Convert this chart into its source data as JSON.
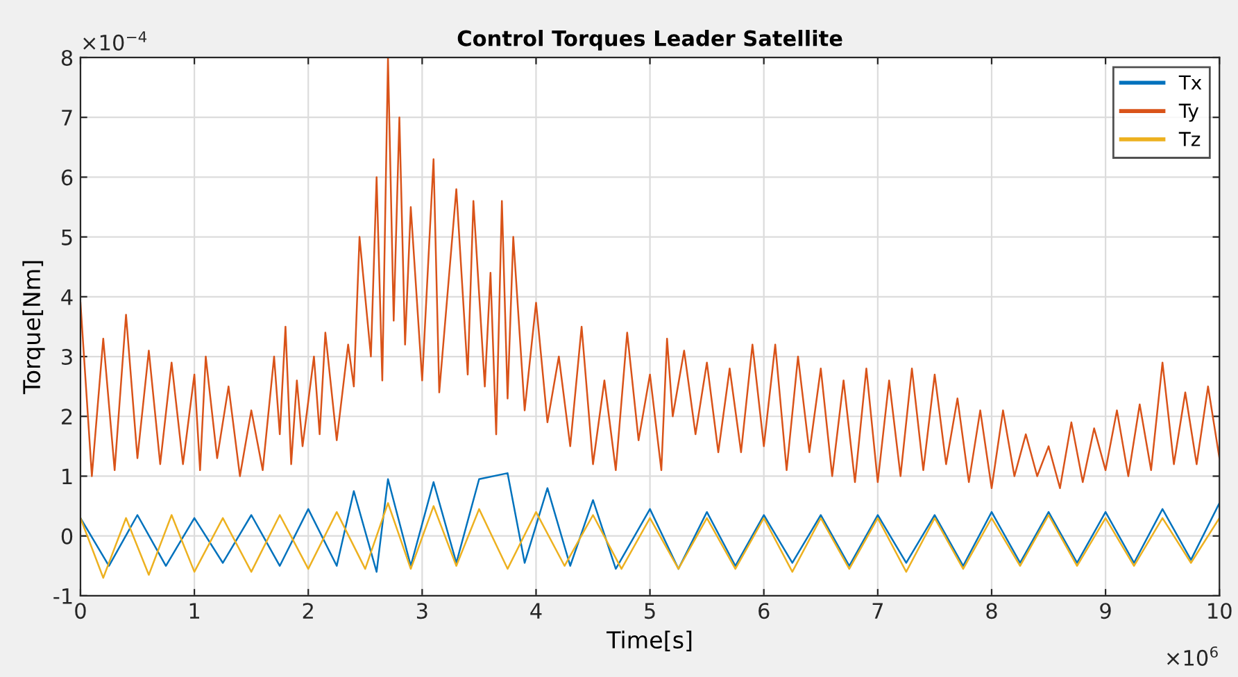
{
  "chart_data": {
    "type": "line",
    "title": "Control Torques Leader Satellite",
    "xlabel": "Time[s]",
    "ylabel": "Torque[Nm]",
    "annotations": [
      "×10$^{−4}$",
      "×10$^{6}$"
    ],
    "xlim": [
      0,
      10
    ],
    "ylim": [
      -1,
      8
    ],
    "xticks": [
      0,
      1,
      2,
      3,
      4,
      5,
      6,
      7,
      8,
      9,
      10
    ],
    "yticks": [
      -1,
      0,
      1,
      2,
      3,
      4,
      5,
      6,
      7,
      8
    ],
    "grid": true,
    "legend": "top right",
    "series": [
      {
        "name": "Tx",
        "color": "#0072bd",
        "x": [
          0,
          0.25,
          0.5,
          0.75,
          1,
          1.25,
          1.5,
          1.75,
          2,
          2.25,
          2.4,
          2.6,
          2.7,
          2.9,
          3.1,
          3.3,
          3.5,
          3.75,
          3.9,
          4.1,
          4.3,
          4.5,
          4.7,
          5,
          5.25,
          5.5,
          5.75,
          6,
          6.25,
          6.5,
          6.75,
          7,
          7.25,
          7.5,
          7.75,
          8,
          8.25,
          8.5,
          8.75,
          9,
          9.25,
          9.5,
          9.75,
          10
        ],
        "values": [
          0.3,
          -0.5,
          0.35,
          -0.5,
          0.3,
          -0.45,
          0.35,
          -0.5,
          0.45,
          -0.5,
          0.75,
          -0.6,
          0.95,
          -0.5,
          0.9,
          -0.45,
          0.95,
          1.05,
          -0.45,
          0.8,
          -0.5,
          0.6,
          -0.55,
          0.45,
          -0.55,
          0.4,
          -0.5,
          0.35,
          -0.45,
          0.35,
          -0.5,
          0.35,
          -0.45,
          0.35,
          -0.5,
          0.4,
          -0.45,
          0.4,
          -0.45,
          0.4,
          -0.45,
          0.45,
          -0.4,
          0.55
        ]
      },
      {
        "name": "Ty",
        "color": "#d95319",
        "x": [
          0,
          0.1,
          0.2,
          0.3,
          0.4,
          0.5,
          0.6,
          0.7,
          0.8,
          0.9,
          1,
          1.05,
          1.1,
          1.2,
          1.3,
          1.4,
          1.5,
          1.6,
          1.7,
          1.75,
          1.8,
          1.85,
          1.9,
          1.95,
          2.05,
          2.1,
          2.15,
          2.25,
          2.35,
          2.4,
          2.45,
          2.55,
          2.6,
          2.65,
          2.7,
          2.75,
          2.8,
          2.85,
          2.9,
          3,
          3.1,
          3.15,
          3.3,
          3.4,
          3.45,
          3.55,
          3.6,
          3.65,
          3.7,
          3.75,
          3.8,
          3.9,
          4,
          4.1,
          4.2,
          4.3,
          4.4,
          4.5,
          4.6,
          4.7,
          4.8,
          4.9,
          5,
          5.1,
          5.15,
          5.2,
          5.3,
          5.4,
          5.5,
          5.6,
          5.7,
          5.8,
          5.9,
          6,
          6.1,
          6.2,
          6.3,
          6.4,
          6.5,
          6.6,
          6.7,
          6.8,
          6.9,
          7,
          7.1,
          7.2,
          7.3,
          7.4,
          7.5,
          7.6,
          7.7,
          7.8,
          7.9,
          8,
          8.1,
          8.2,
          8.3,
          8.4,
          8.5,
          8.6,
          8.7,
          8.8,
          8.9,
          9,
          9.1,
          9.2,
          9.3,
          9.4,
          9.5,
          9.6,
          9.7,
          9.8,
          9.9,
          10
        ],
        "values": [
          3.9,
          1.0,
          3.3,
          1.1,
          3.7,
          1.3,
          3.1,
          1.2,
          2.9,
          1.2,
          2.7,
          1.1,
          3.0,
          1.3,
          2.5,
          1.0,
          2.1,
          1.1,
          3.0,
          1.7,
          3.5,
          1.2,
          2.6,
          1.5,
          3.0,
          1.7,
          3.4,
          1.6,
          3.2,
          2.5,
          5.0,
          3.0,
          6.0,
          2.6,
          8.0,
          3.6,
          7.0,
          3.2,
          5.5,
          2.6,
          6.3,
          2.4,
          5.8,
          2.7,
          5.6,
          2.5,
          4.4,
          1.7,
          5.6,
          2.3,
          5.0,
          2.1,
          3.9,
          1.9,
          3.0,
          1.5,
          3.5,
          1.2,
          2.6,
          1.1,
          3.4,
          1.6,
          2.7,
          1.1,
          3.3,
          2.0,
          3.1,
          1.7,
          2.9,
          1.4,
          2.8,
          1.4,
          3.2,
          1.5,
          3.2,
          1.1,
          3.0,
          1.4,
          2.8,
          1.0,
          2.6,
          0.9,
          2.8,
          0.9,
          2.6,
          1.0,
          2.8,
          1.1,
          2.7,
          1.2,
          2.3,
          0.9,
          2.1,
          0.8,
          2.1,
          1.0,
          1.7,
          1.0,
          1.5,
          0.8,
          1.9,
          0.9,
          1.8,
          1.1,
          2.1,
          1.0,
          2.2,
          1.1,
          2.9,
          1.2,
          2.4,
          1.2,
          2.5,
          1.3
        ]
      },
      {
        "name": "Tz",
        "color": "#edb120",
        "x": [
          0,
          0.2,
          0.4,
          0.6,
          0.8,
          1,
          1.25,
          1.5,
          1.75,
          2,
          2.25,
          2.5,
          2.7,
          2.9,
          3.1,
          3.3,
          3.5,
          3.75,
          4,
          4.25,
          4.5,
          4.75,
          5,
          5.25,
          5.5,
          5.75,
          6,
          6.25,
          6.5,
          6.75,
          7,
          7.25,
          7.5,
          7.75,
          8,
          8.25,
          8.5,
          8.75,
          9,
          9.25,
          9.5,
          9.75,
          10
        ],
        "values": [
          0.3,
          -0.7,
          0.3,
          -0.65,
          0.35,
          -0.6,
          0.3,
          -0.6,
          0.35,
          -0.55,
          0.4,
          -0.55,
          0.55,
          -0.55,
          0.5,
          -0.5,
          0.45,
          -0.55,
          0.4,
          -0.5,
          0.35,
          -0.55,
          0.3,
          -0.55,
          0.3,
          -0.55,
          0.3,
          -0.6,
          0.3,
          -0.55,
          0.3,
          -0.6,
          0.3,
          -0.55,
          0.3,
          -0.5,
          0.35,
          -0.5,
          0.3,
          -0.5,
          0.3,
          -0.45,
          0.3
        ]
      }
    ]
  }
}
